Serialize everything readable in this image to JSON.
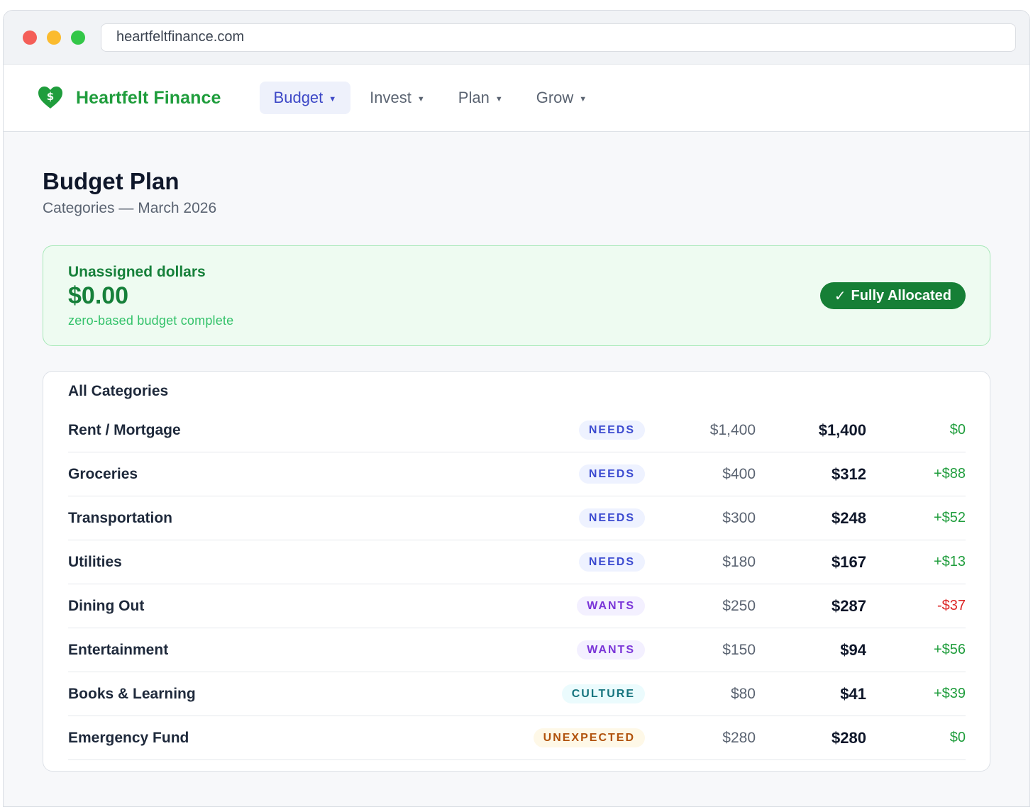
{
  "browser": {
    "url": "heartfeltfinance.com"
  },
  "brand": {
    "name": "Heartfelt Finance",
    "icon": "heart-dollar-icon",
    "color": "#1f9d3c"
  },
  "nav": {
    "items": [
      {
        "label": "Budget",
        "active": true
      },
      {
        "label": "Invest",
        "active": false
      },
      {
        "label": "Plan",
        "active": false
      },
      {
        "label": "Grow",
        "active": false
      }
    ]
  },
  "page": {
    "title": "Budget Plan",
    "subtitle": "Categories — March 2026"
  },
  "allocation": {
    "label": "Unassigned dollars",
    "amount": "$0.00",
    "note": "zero-based budget complete",
    "badge": "Fully Allocated",
    "badge_icon": "checkmark-icon"
  },
  "categories": {
    "title": "All Categories",
    "rows": [
      {
        "name": "Rent / Mortgage",
        "tag": "NEEDS",
        "budgeted": "$1,400",
        "spent": "$1,400",
        "diff": "$0"
      },
      {
        "name": "Groceries",
        "tag": "NEEDS",
        "budgeted": "$400",
        "spent": "$312",
        "diff": "+$88"
      },
      {
        "name": "Transportation",
        "tag": "NEEDS",
        "budgeted": "$300",
        "spent": "$248",
        "diff": "+$52"
      },
      {
        "name": "Utilities",
        "tag": "NEEDS",
        "budgeted": "$180",
        "spent": "$167",
        "diff": "+$13"
      },
      {
        "name": "Dining Out",
        "tag": "WANTS",
        "budgeted": "$250",
        "spent": "$287",
        "diff": "-$37"
      },
      {
        "name": "Entertainment",
        "tag": "WANTS",
        "budgeted": "$150",
        "spent": "$94",
        "diff": "+$56"
      },
      {
        "name": "Books & Learning",
        "tag": "CULTURE",
        "budgeted": "$80",
        "spent": "$41",
        "diff": "+$39"
      },
      {
        "name": "Emergency Fund",
        "tag": "UNEXPECTED",
        "budgeted": "$280",
        "spent": "$280",
        "diff": "$0"
      }
    ]
  },
  "colors": {
    "positive": "#1f9d3c",
    "negative": "#dc2626",
    "needs": "#3c4bd0",
    "wants": "#7a35d8",
    "culture": "#16747e",
    "unexpected": "#b1520c"
  }
}
